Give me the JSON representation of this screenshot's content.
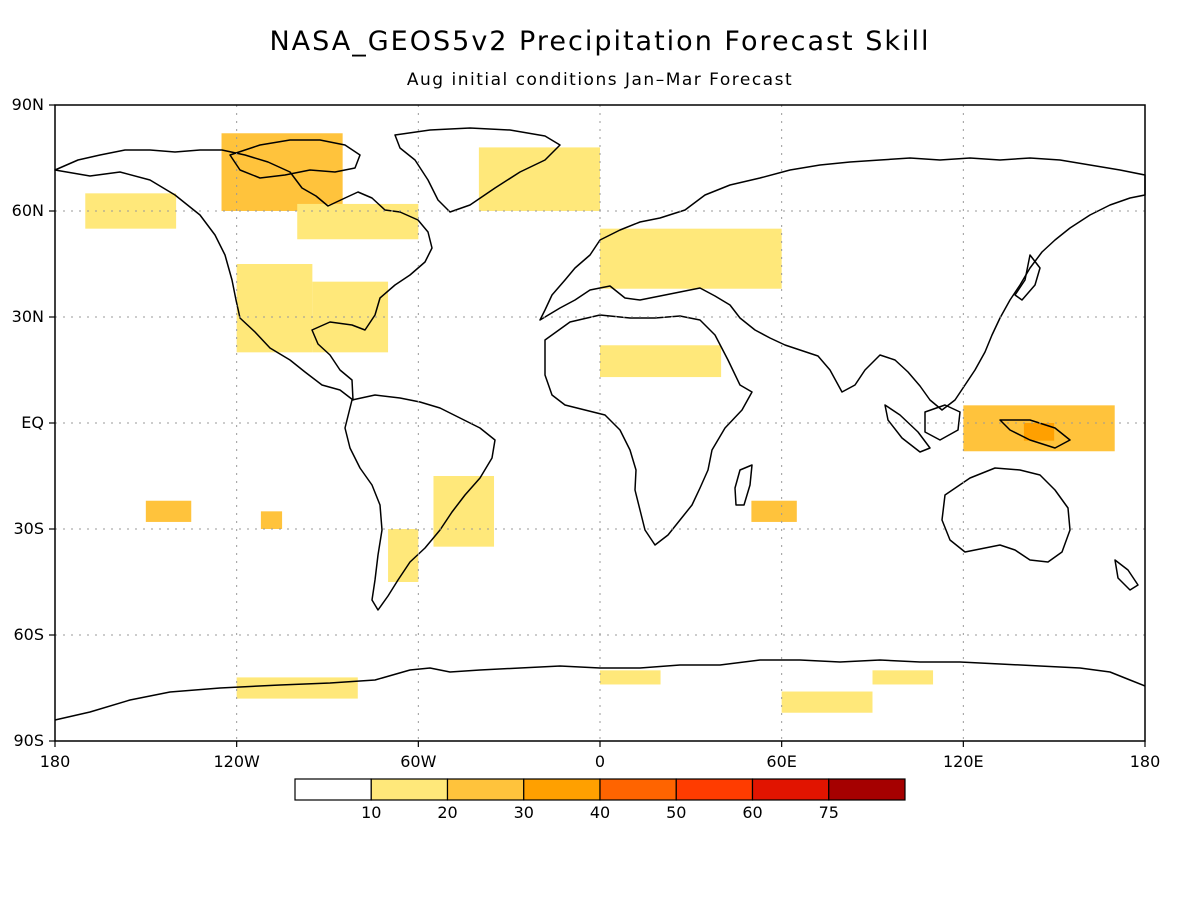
{
  "title": "NASA_GEOS5v2 Precipitation Forecast Skill",
  "subtitle": "Aug initial conditions   Jan–Mar Forecast",
  "lat_labels": [
    "90N",
    "60N",
    "30N",
    "EQ",
    "30S",
    "60S",
    "90S"
  ],
  "lon_labels": [
    "180",
    "120W",
    "60W",
    "0",
    "60E",
    "120E",
    "180"
  ],
  "colorbar": {
    "labels": [
      "10",
      "20",
      "30",
      "40",
      "50",
      "60",
      "75"
    ],
    "colors": [
      "#ffffff",
      "#ffe87a",
      "#ffc33c",
      "#ffa000",
      "#ff6400",
      "#ff3c00",
      "#e11400",
      "#a50000"
    ]
  },
  "chart_data": {
    "type": "heatmap",
    "title": "NASA_GEOS5v2 Precipitation Forecast Skill",
    "subtitle": "Aug initial conditions   Jan–Mar Forecast",
    "xlim": [
      -180,
      180
    ],
    "ylim": [
      -90,
      90
    ],
    "grid": true,
    "levels": [
      10,
      20,
      30,
      40,
      50,
      60,
      75
    ],
    "regions": [
      {
        "lon": [
          -125,
          -85
        ],
        "lat": [
          60,
          82
        ],
        "level": 20
      },
      {
        "lon": [
          -100,
          -60
        ],
        "lat": [
          52,
          62
        ],
        "level": 10
      },
      {
        "lon": [
          -170,
          -140
        ],
        "lat": [
          55,
          65
        ],
        "level": 10
      },
      {
        "lon": [
          -120,
          -95
        ],
        "lat": [
          20,
          45
        ],
        "level": 10
      },
      {
        "lon": [
          -95,
          -70
        ],
        "lat": [
          20,
          40
        ],
        "level": 10
      },
      {
        "lon": [
          -40,
          0
        ],
        "lat": [
          60,
          78
        ],
        "level": 10
      },
      {
        "lon": [
          0,
          60
        ],
        "lat": [
          38,
          55
        ],
        "level": 10
      },
      {
        "lon": [
          0,
          40
        ],
        "lat": [
          13,
          22
        ],
        "level": 10
      },
      {
        "lon": [
          -55,
          -35
        ],
        "lat": [
          -35,
          -15
        ],
        "level": 10
      },
      {
        "lon": [
          -70,
          -60
        ],
        "lat": [
          -45,
          -30
        ],
        "level": 10
      },
      {
        "lon": [
          120,
          170
        ],
        "lat": [
          -8,
          5
        ],
        "level": 20
      },
      {
        "lon": [
          140,
          150
        ],
        "lat": [
          -5,
          0
        ],
        "level": 30
      },
      {
        "lon": [
          -150,
          -135
        ],
        "lat": [
          -28,
          -22
        ],
        "level": 20
      },
      {
        "lon": [
          -112,
          -105
        ],
        "lat": [
          -30,
          -25
        ],
        "level": 20
      },
      {
        "lon": [
          50,
          65
        ],
        "lat": [
          -28,
          -22
        ],
        "level": 20
      },
      {
        "lon": [
          60,
          90
        ],
        "lat": [
          -82,
          -76
        ],
        "level": 10
      },
      {
        "lon": [
          -120,
          -80
        ],
        "lat": [
          -78,
          -72
        ],
        "level": 10
      },
      {
        "lon": [
          0,
          20
        ],
        "lat": [
          -74,
          -70
        ],
        "level": 10
      },
      {
        "lon": [
          90,
          110
        ],
        "lat": [
          -74,
          -70
        ],
        "level": 10
      }
    ]
  }
}
